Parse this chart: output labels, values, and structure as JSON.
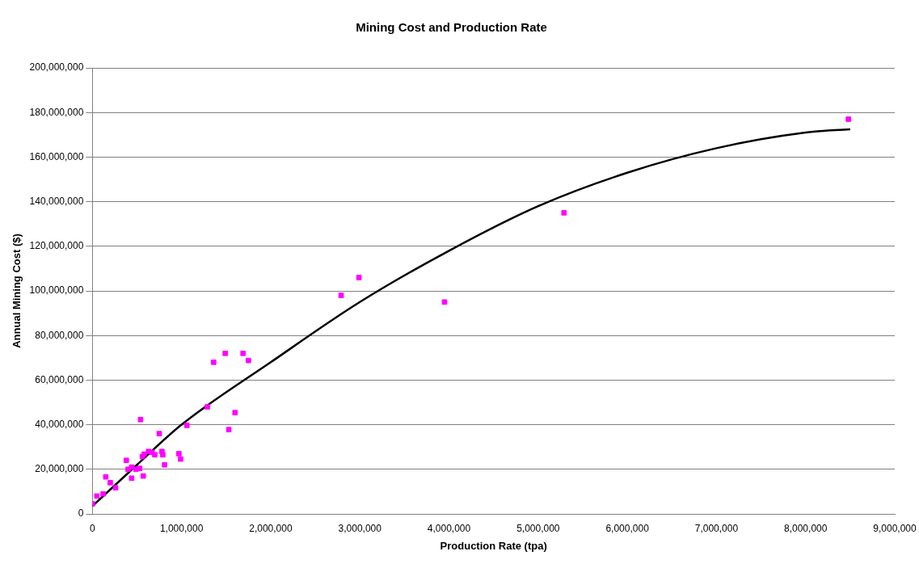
{
  "chart_data": {
    "type": "scatter",
    "title": "Mining Cost and Production Rate",
    "xlabel": "Production Rate (tpa)",
    "ylabel": "Annual Mining Cost ($)",
    "xlim": [
      0,
      9000000
    ],
    "xticks": [
      {
        "value": 0,
        "label": "0"
      },
      {
        "value": 1000000,
        "label": "1,000,000"
      },
      {
        "value": 2000000,
        "label": "2,000,000"
      },
      {
        "value": 3000000,
        "label": "3,000,000"
      },
      {
        "value": 4000000,
        "label": "4,000,000"
      },
      {
        "value": 5000000,
        "label": "5,000,000"
      },
      {
        "value": 6000000,
        "label": "6,000,000"
      },
      {
        "value": 7000000,
        "label": "7,000,000"
      },
      {
        "value": 8000000,
        "label": "8,000,000"
      },
      {
        "value": 9000000,
        "label": "9,000,000"
      }
    ],
    "ylim": [
      0,
      200000000
    ],
    "yticks": [
      {
        "value": 0,
        "label": "0"
      },
      {
        "value": 20000000,
        "label": "20,000,000"
      },
      {
        "value": 40000000,
        "label": "40,000,000"
      },
      {
        "value": 60000000,
        "label": "60,000,000"
      },
      {
        "value": 80000000,
        "label": "80,000,000"
      },
      {
        "value": 100000000,
        "label": "100,000,000"
      },
      {
        "value": 120000000,
        "label": "120,000,000"
      },
      {
        "value": 140000000,
        "label": "140,000,000"
      },
      {
        "value": 160000000,
        "label": "160,000,000"
      },
      {
        "value": 180000000,
        "label": "180,000,000"
      },
      {
        "value": 200000000,
        "label": "200,000,000"
      }
    ],
    "grid": "y",
    "legend": false,
    "marker": "square",
    "series": [
      {
        "type": "scatter",
        "color": "#ff00ff",
        "x": [
          0,
          50000,
          120000,
          150000,
          200000,
          260000,
          380000,
          400000,
          440000,
          440000,
          490000,
          530000,
          560000,
          580000,
          540000,
          570000,
          630000,
          670000,
          700000,
          750000,
          780000,
          790000,
          810000,
          970000,
          990000,
          1060000,
          1290000,
          1360000,
          1490000,
          1530000,
          1600000,
          1690000,
          1750000,
          2790000,
          2990000,
          3950000,
          5290000,
          8480000
        ],
        "values": [
          4500000,
          8000000,
          9000000,
          16600000,
          14000000,
          11700000,
          24000000,
          20000000,
          21000000,
          16000000,
          20000000,
          20400000,
          25700000,
          26800000,
          42300000,
          17000000,
          28000000,
          27600000,
          26500000,
          36000000,
          28000000,
          26500000,
          22000000,
          27000000,
          24600000,
          39700000,
          48000000,
          68000000,
          72000000,
          37800000,
          45400000,
          72000000,
          68800000,
          98000000,
          106000000,
          95000000,
          135000000,
          177000000
        ]
      },
      {
        "type": "line",
        "color": "#000000",
        "marker": "none",
        "x": [
          0,
          500000,
          1000000,
          2000000,
          3000000,
          4000000,
          5000000,
          6000000,
          7000000,
          8000000,
          8500000
        ],
        "values": [
          3500000,
          22000000,
          40000000,
          68000000,
          95000000,
          118000000,
          138000000,
          153000000,
          164000000,
          171000000,
          172500000
        ]
      }
    ]
  }
}
